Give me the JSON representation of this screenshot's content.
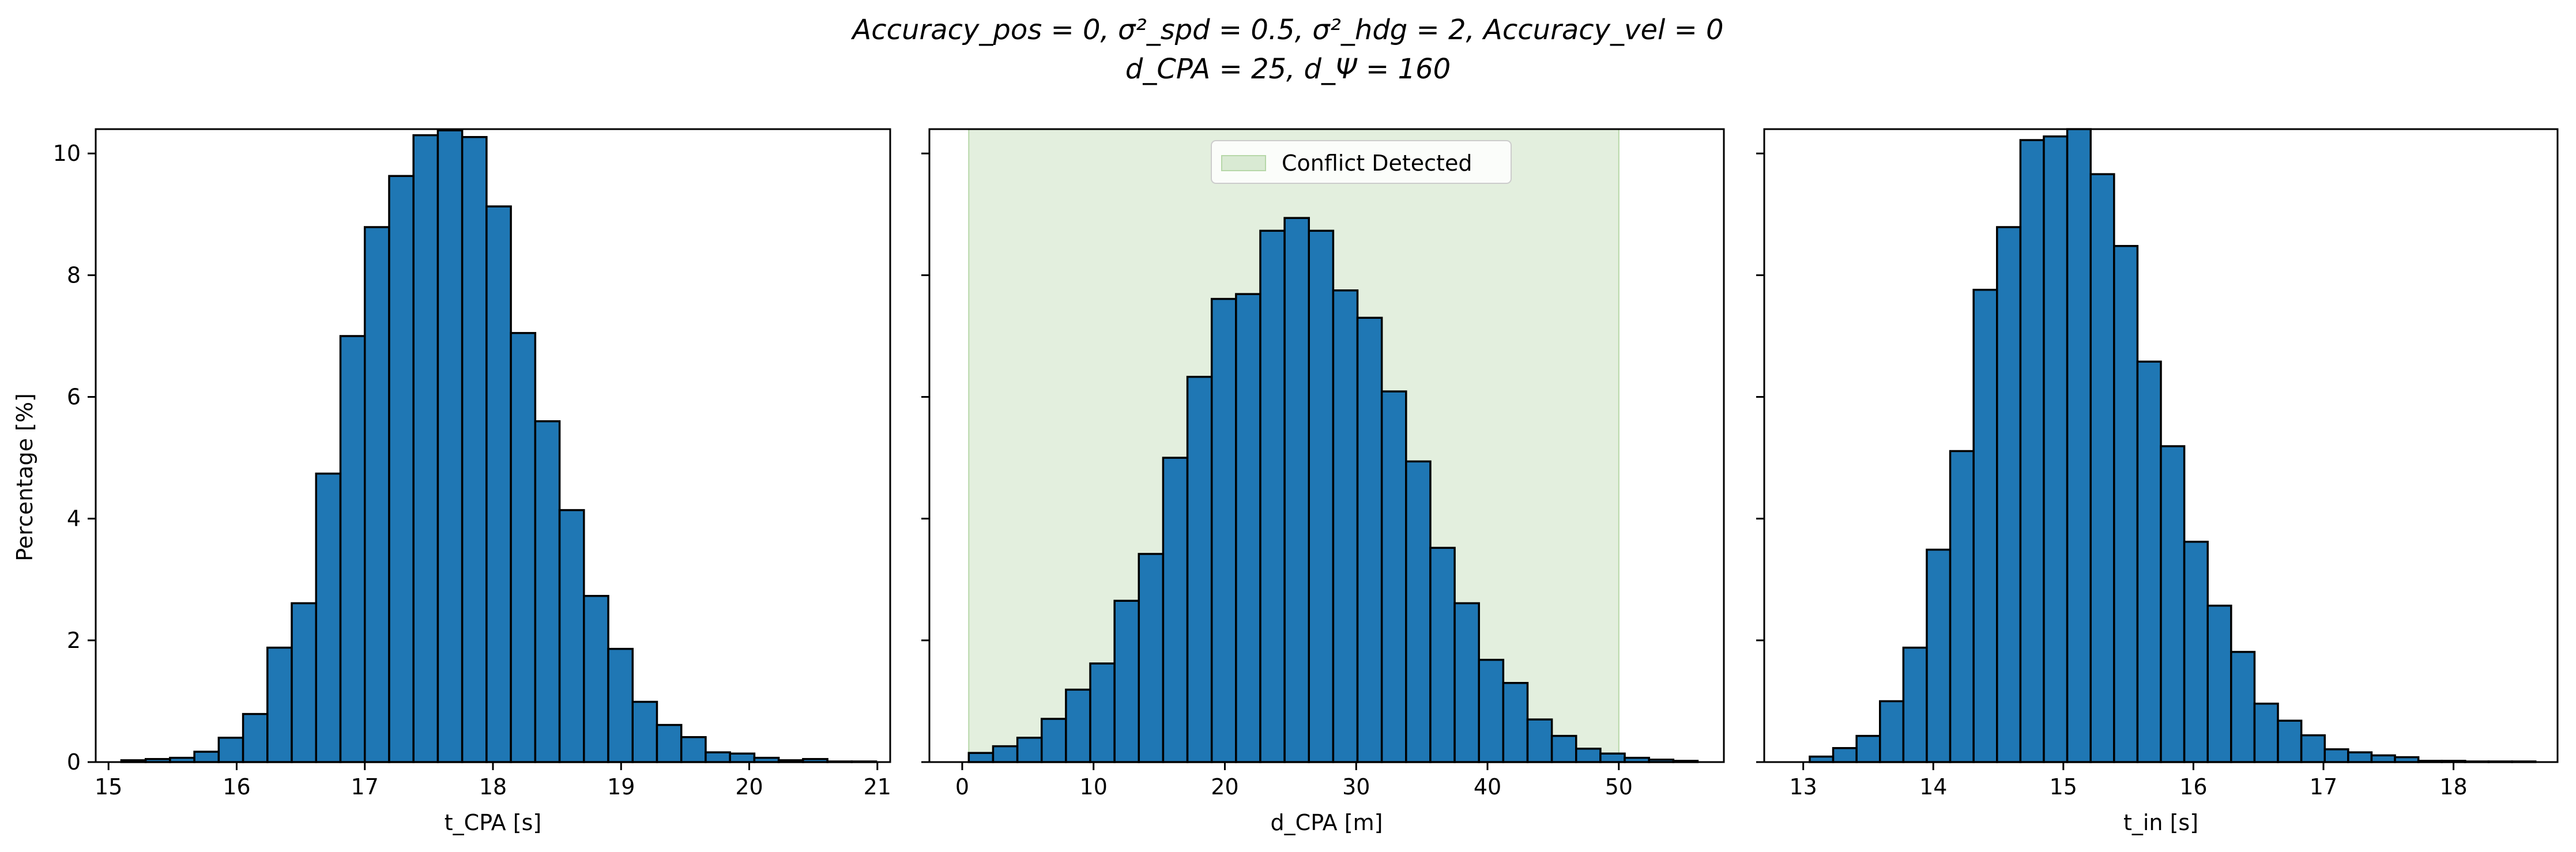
{
  "figure": {
    "title_line1": "Accuracy_pos = 0, σ²_spd = 0.5, σ²_hdg = 2, Accuracy_vel = 0",
    "title_line2": "d_CPA = 25, d_Ψ = 160",
    "ylabel": "Percentage [%]",
    "colors": {
      "bar": "#1f77b4",
      "edge": "#000000",
      "span": "#d9ead3"
    }
  },
  "chart_data": [
    {
      "type": "bar",
      "xlabel": "t_CPA [s]",
      "xlim": [
        14.9,
        21.1
      ],
      "ylim": [
        0,
        10.4
      ],
      "xticks": [
        15,
        16,
        17,
        18,
        19,
        20,
        21
      ],
      "yticks": [
        0,
        2,
        4,
        6,
        8,
        10
      ],
      "bin_start": 15.1,
      "bin_width": 0.19,
      "values": [
        0.03,
        0.05,
        0.07,
        0.17,
        0.4,
        0.79,
        1.88,
        2.61,
        4.74,
        7.0,
        8.79,
        9.63,
        10.3,
        10.38,
        10.27,
        9.13,
        7.05,
        5.6,
        4.14,
        2.73,
        1.86,
        0.99,
        0.61,
        0.41,
        0.16,
        0.14,
        0.07,
        0.03,
        0.05,
        0.01,
        0.01
      ]
    },
    {
      "type": "bar",
      "xlabel": "d_CPA [m]",
      "xlim": [
        -2.5,
        58
      ],
      "ylim": [
        0,
        10.4
      ],
      "xticks": [
        0,
        10,
        20,
        30,
        40,
        50
      ],
      "yticks": [
        0,
        2,
        4,
        6,
        8,
        10
      ],
      "bin_start": 0.5,
      "bin_width": 1.85,
      "values": [
        0.15,
        0.26,
        0.4,
        0.71,
        1.19,
        1.62,
        2.65,
        3.42,
        5.0,
        6.33,
        7.61,
        7.69,
        8.73,
        8.94,
        8.73,
        7.75,
        7.3,
        6.09,
        4.94,
        3.52,
        2.61,
        1.68,
        1.3,
        0.7,
        0.43,
        0.22,
        0.14,
        0.07,
        0.04,
        0.02
      ],
      "span": {
        "from": 0.5,
        "to": 50,
        "label": "Conflict Detected"
      },
      "legend_position": "top-center"
    },
    {
      "type": "bar",
      "xlabel": "t_in [s]",
      "xlim": [
        12.7,
        18.8
      ],
      "ylim": [
        0,
        10.4
      ],
      "xticks": [
        13,
        14,
        15,
        16,
        17,
        18
      ],
      "yticks": [
        0,
        2,
        4,
        6,
        8,
        10
      ],
      "bin_start": 13.05,
      "bin_width": 0.18,
      "values": [
        0.09,
        0.23,
        0.43,
        1.0,
        1.88,
        3.49,
        5.11,
        7.76,
        8.79,
        10.22,
        10.28,
        10.4,
        9.66,
        8.48,
        6.58,
        5.19,
        3.62,
        2.57,
        1.81,
        0.96,
        0.68,
        0.44,
        0.21,
        0.16,
        0.11,
        0.08,
        0.02,
        0.02,
        0.01,
        0.01,
        0.01
      ]
    }
  ]
}
